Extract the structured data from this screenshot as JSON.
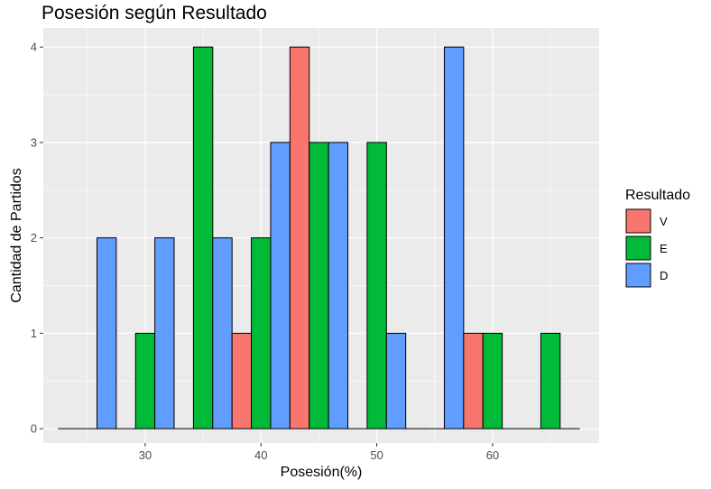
{
  "chart_data": {
    "type": "bar",
    "title": "Posesión según Resultado",
    "xlabel": "Posesión(%)",
    "ylabel": "Cantidad de Partidos",
    "xlim": [
      21.2,
      69.2
    ],
    "ylim": [
      -0.15,
      4.2
    ],
    "x_ticks": [
      30,
      40,
      50,
      60
    ],
    "y_ticks": [
      0,
      1,
      2,
      3,
      4
    ],
    "bin_width": 5,
    "bin_starts": [
      22.5,
      27.5,
      32.5,
      37.5,
      42.5,
      47.5,
      52.5,
      57.5,
      62.5
    ],
    "position": "dodge",
    "grid": true,
    "legend": {
      "title": "Resultado",
      "placement": "right",
      "entries": [
        "V",
        "E",
        "D"
      ]
    },
    "series": [
      {
        "name": "V",
        "color": "#F8766D",
        "values": [
          0,
          0,
          0,
          1,
          4,
          0,
          0,
          1,
          0
        ]
      },
      {
        "name": "E",
        "color": "#00BA38",
        "values": [
          0,
          1,
          4,
          2,
          3,
          3,
          0,
          1,
          1
        ]
      },
      {
        "name": "D",
        "color": "#619CFF",
        "values": [
          2,
          2,
          2,
          3,
          3,
          1,
          4,
          0,
          0
        ]
      }
    ],
    "colors": {
      "panel_background": "#EBEBEB",
      "grid": "#FFFFFF",
      "bar_outline": "#000000"
    }
  }
}
